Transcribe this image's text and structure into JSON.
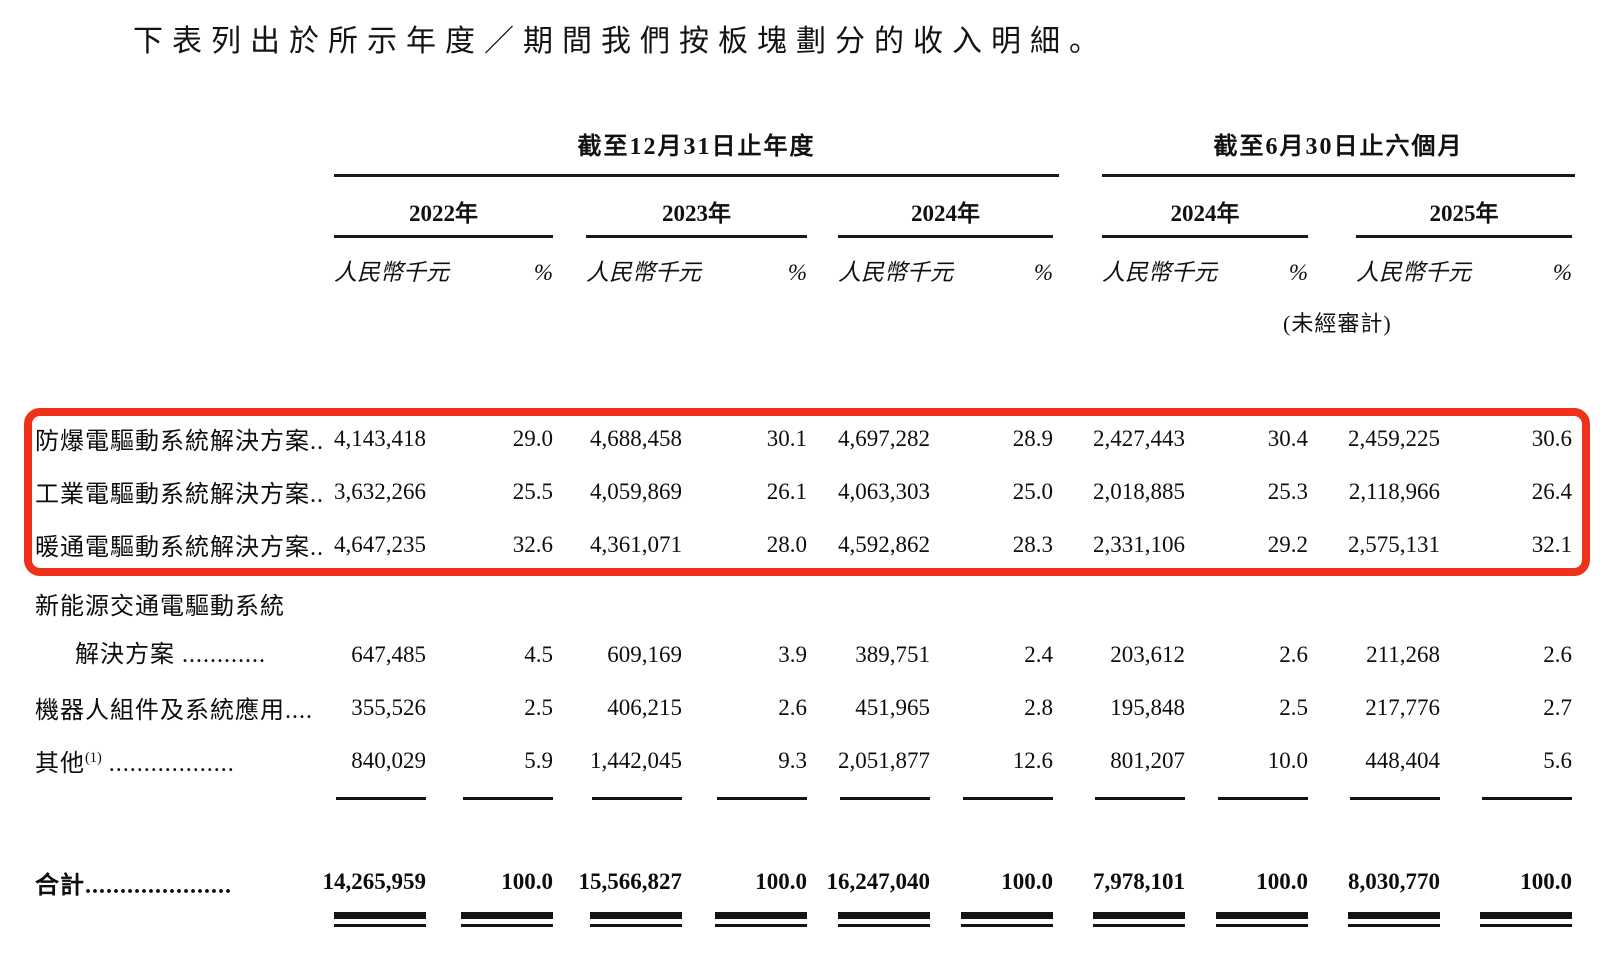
{
  "page": {
    "background": "#ffffff",
    "highlight_color": "#ee3118",
    "text_color": "#111111"
  },
  "intro": "下表列出於所示年度／期間我們按板塊劃分的收入明細。",
  "table": {
    "group_headers": [
      "截至12月31日止年度",
      "截至6月30日止六個月"
    ],
    "year_headers": [
      "2022年",
      "2023年",
      "2024年",
      "2024年",
      "2025年"
    ],
    "unit_label": "人民幣千元",
    "pct_label": "%",
    "unaudited_note": "(未經審計)",
    "rows": [
      {
        "label": "防爆電驅動系統解決方案..",
        "highlighted": true,
        "values": [
          "4,143,418",
          "29.0",
          "4,688,458",
          "30.1",
          "4,697,282",
          "28.9",
          "2,427,443",
          "30.4",
          "2,459,225",
          "30.6"
        ]
      },
      {
        "label": "工業電驅動系統解決方案..",
        "highlighted": true,
        "values": [
          "3,632,266",
          "25.5",
          "4,059,869",
          "26.1",
          "4,063,303",
          "25.0",
          "2,018,885",
          "25.3",
          "2,118,966",
          "26.4"
        ]
      },
      {
        "label": "暖通電驅動系統解決方案..",
        "highlighted": true,
        "values": [
          "4,647,235",
          "32.6",
          "4,361,071",
          "28.0",
          "4,592,862",
          "28.3",
          "2,331,106",
          "29.2",
          "2,575,131",
          "32.1"
        ]
      },
      {
        "label_line1": "新能源交通電驅動系統",
        "label": "解決方案 ............",
        "indent": true,
        "values": [
          "647,485",
          "4.5",
          "609,169",
          "3.9",
          "389,751",
          "2.4",
          "203,612",
          "2.6",
          "211,268",
          "2.6"
        ]
      },
      {
        "label": "機器人組件及系統應用....",
        "values": [
          "355,526",
          "2.5",
          "406,215",
          "2.6",
          "451,965",
          "2.8",
          "195,848",
          "2.5",
          "217,776",
          "2.7"
        ]
      },
      {
        "label": "其他",
        "label_sup": "(1)",
        "label_dots": " ..................",
        "values": [
          "840,029",
          "5.9",
          "1,442,045",
          "9.3",
          "2,051,877",
          "12.6",
          "801,207",
          "10.0",
          "448,404",
          "5.6"
        ]
      }
    ],
    "total_row": {
      "label": "合計",
      "label_dots": ".....................",
      "values": [
        "14,265,959",
        "100.0",
        "15,566,827",
        "100.0",
        "16,247,040",
        "100.0",
        "7,978,101",
        "100.0",
        "8,030,770",
        "100.0"
      ]
    }
  }
}
